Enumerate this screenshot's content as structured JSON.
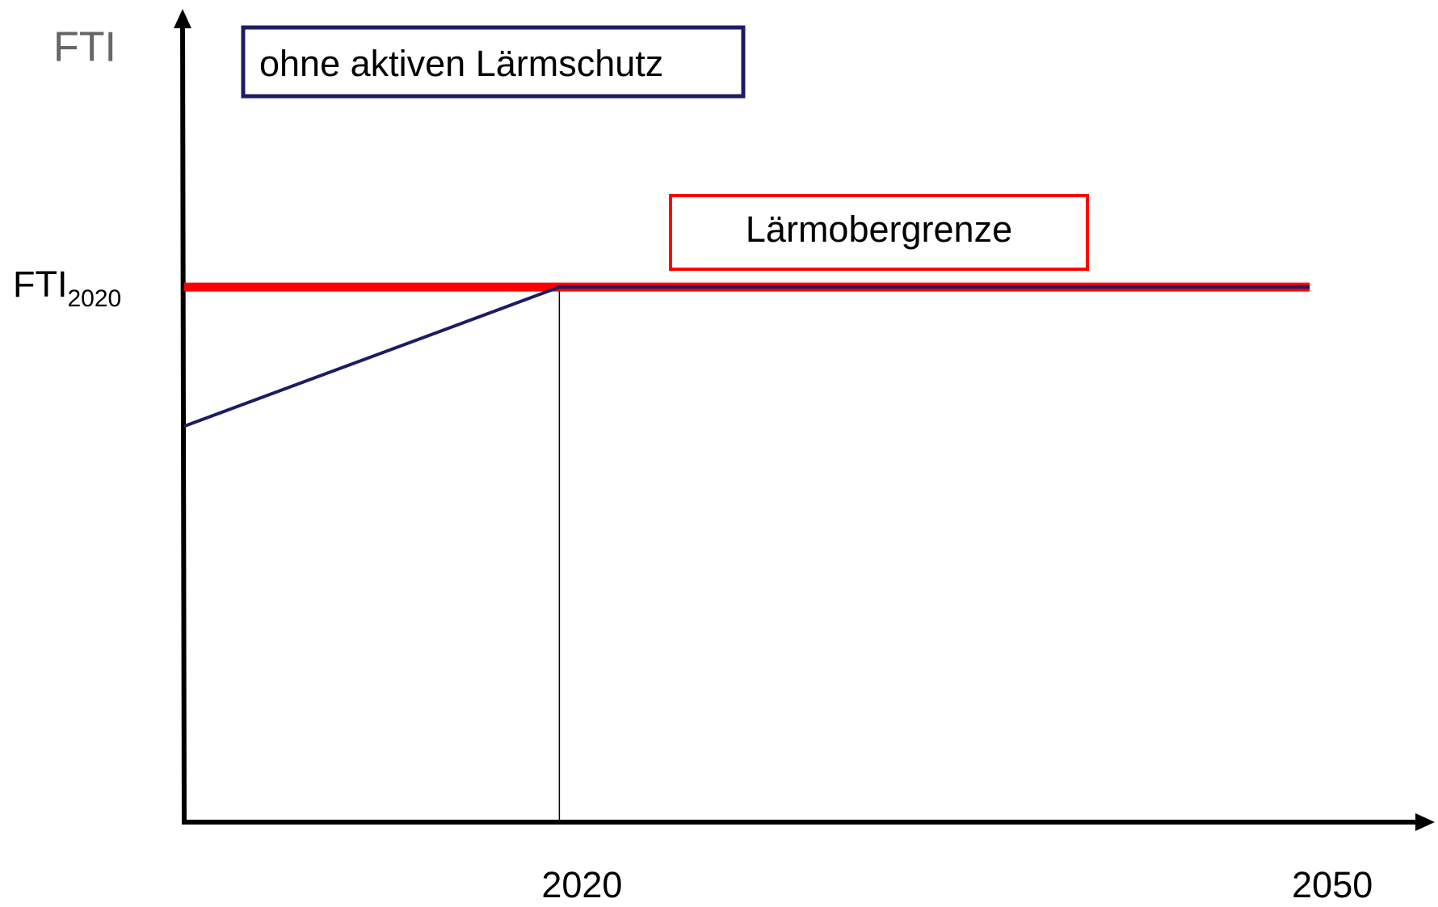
{
  "chart_data": {
    "type": "line",
    "ylabel": "FTI",
    "x": [
      2005,
      2020,
      2050
    ],
    "xlim": [
      2005,
      2055
    ],
    "xticks": [
      2020,
      2050
    ],
    "ylim": [
      0,
      152
    ],
    "yticks": [
      {
        "value": 100,
        "label": "FTI",
        "label_sub": "2020"
      }
    ],
    "series": [
      {
        "name": "Lärmobergrenze",
        "color": "#ff0000",
        "values": [
          100,
          100,
          100
        ]
      },
      {
        "name": "ohne aktiven Lärmschutz",
        "color": "#1c1c64",
        "values": [
          74,
          100,
          100
        ]
      }
    ]
  }
}
